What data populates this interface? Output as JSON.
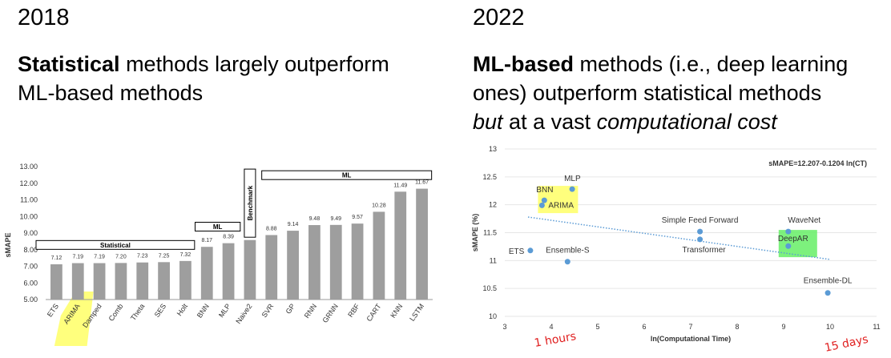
{
  "left": {
    "year": "2018",
    "headline_bold": "Statistical",
    "headline_rest_1": " methods largely outperform",
    "headline_line2": "ML-based methods"
  },
  "right": {
    "year": "2022",
    "headline_bold": "ML-based",
    "headline_rest_1": " methods (i.e., deep learning",
    "headline_line2": "ones) outperform statistical methods",
    "headline_line3_italic1": "but",
    "headline_line3_mid": " at a vast ",
    "headline_line3_italic2": "computational cost"
  },
  "chart_data": [
    {
      "type": "bar",
      "ylabel": "sMAPE",
      "ylim": [
        5.0,
        13.0
      ],
      "yticks": [
        "5.00",
        "6.00",
        "7.00",
        "8.00",
        "9.00",
        "10.00",
        "11.00",
        "12.00",
        "13.00"
      ],
      "categories": [
        "ETS",
        "ARIMA",
        "Damped",
        "Comb",
        "Theta",
        "SES",
        "Holt",
        "BNN",
        "MLP",
        "Naive2",
        "SVR",
        "GP",
        "RNN",
        "GRNN",
        "RBF",
        "CART",
        "KNN",
        "LSTM"
      ],
      "values": [
        7.12,
        7.19,
        7.19,
        7.2,
        7.23,
        7.25,
        7.32,
        8.17,
        8.39,
        8.58,
        8.88,
        9.14,
        9.48,
        9.49,
        9.57,
        10.28,
        11.49,
        11.67
      ],
      "value_labels": [
        "7.12",
        "7.19",
        "7.19",
        "7.20",
        "7.23",
        "7.25",
        "7.32",
        "8.17",
        "8.39",
        "8.58",
        "8.88",
        "9.14",
        "9.48",
        "9.49",
        "9.57",
        "10.28",
        "11.49",
        "11.67"
      ],
      "bar_color": "#9e9e9e",
      "groups": [
        {
          "label": "Statistical",
          "from": "ETS",
          "to": "Holt"
        },
        {
          "label": "ML",
          "from": "BNN",
          "to": "MLP"
        },
        {
          "label": "Benchmark",
          "from": "Naive2",
          "to": "Naive2"
        },
        {
          "label": "ML",
          "from": "SVR",
          "to": "LSTM"
        }
      ],
      "highlight": {
        "category": "ARIMA",
        "color": "#ffff66"
      }
    },
    {
      "type": "scatter",
      "xlabel": "ln(Computational Time)",
      "ylabel": "sMAPE (%)",
      "xlim": [
        3,
        11
      ],
      "ylim": [
        10,
        13
      ],
      "xticks": [
        "3",
        "4",
        "5",
        "6",
        "7",
        "8",
        "9",
        "10",
        "11"
      ],
      "yticks": [
        "10",
        "10.5",
        "11",
        "11.5",
        "12",
        "12.5",
        "13"
      ],
      "points": [
        {
          "label": "ETS",
          "x": 3.55,
          "y": 11.18
        },
        {
          "label": "ARIMA",
          "x": 3.8,
          "y": 11.99
        },
        {
          "label": "BNN",
          "x": 3.85,
          "y": 12.08
        },
        {
          "label": "MLP",
          "x": 4.45,
          "y": 12.28
        },
        {
          "label": "Ensemble-S",
          "x": 4.35,
          "y": 10.98
        },
        {
          "label": "Simple Feed Forward",
          "x": 7.2,
          "y": 11.52
        },
        {
          "label": "Transformer",
          "x": 7.2,
          "y": 11.38
        },
        {
          "label": "WaveNet",
          "x": 9.1,
          "y": 11.52
        },
        {
          "label": "DeepAR",
          "x": 9.1,
          "y": 11.26
        },
        {
          "label": "Ensemble-DL",
          "x": 9.95,
          "y": 10.42
        }
      ],
      "point_color": "#5b9bd5",
      "trendline": {
        "equation": "sMAPE=12.207-0.1204 ln(CT)",
        "x": [
          3.5,
          10
        ]
      },
      "highlights": [
        {
          "around": [
            "BNN",
            "ARIMA"
          ],
          "color": "#ffff66"
        },
        {
          "around": [
            "WaveNet",
            "DeepAR"
          ],
          "color": "#66ee66"
        }
      ],
      "annotations": [
        {
          "text": "1 hours",
          "color": "#e02020"
        },
        {
          "text": "15 days",
          "color": "#e02020"
        }
      ]
    }
  ]
}
